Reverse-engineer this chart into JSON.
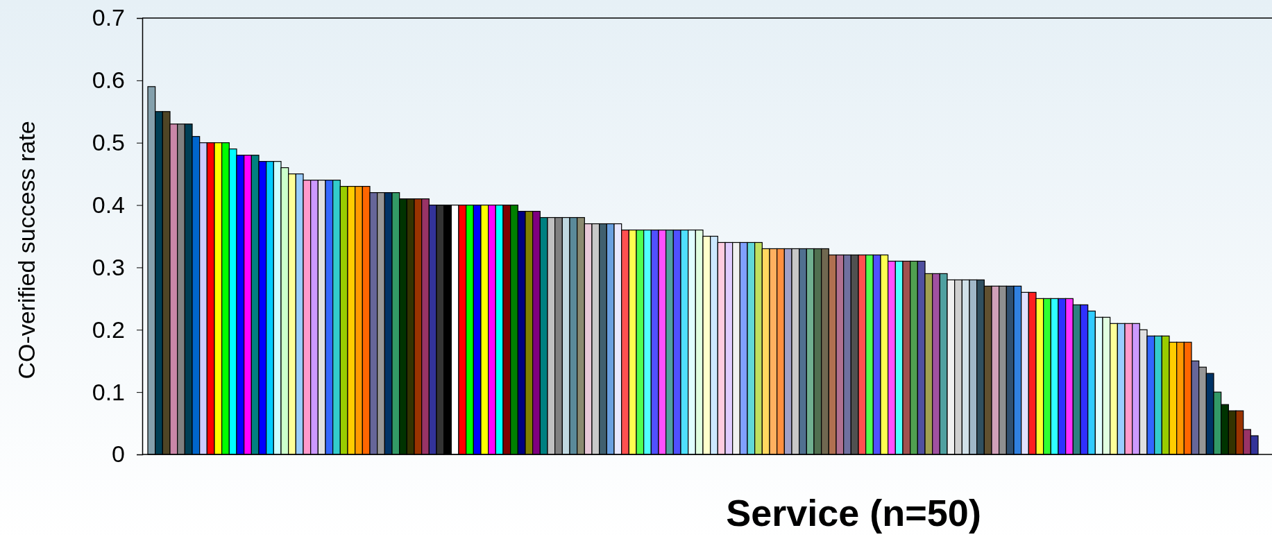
{
  "chart_data": {
    "type": "bar",
    "xlabel": "Service (n=50)",
    "ylabel": "CO-verified success rate",
    "categories": [
      null,
      null,
      null,
      null,
      null,
      null,
      null,
      null,
      null,
      null,
      null,
      null,
      null,
      null,
      null,
      null,
      null,
      null,
      null,
      null,
      null,
      null,
      null,
      null,
      null,
      null,
      null,
      null,
      null,
      null,
      null,
      null,
      null,
      null,
      null,
      null,
      null,
      null,
      null,
      null,
      null,
      null,
      null,
      null,
      null,
      null,
      null,
      null,
      null,
      null,
      null,
      null,
      null,
      null,
      null,
      null,
      null,
      null,
      null,
      null,
      null,
      null,
      null,
      null,
      null,
      null,
      null,
      null,
      null,
      null,
      null,
      null,
      null,
      null,
      null,
      null,
      null,
      null,
      null,
      null,
      null,
      null,
      null,
      null,
      null,
      null,
      null,
      null,
      null,
      null,
      null,
      null,
      null,
      null,
      null,
      null,
      null,
      null,
      null,
      null,
      null,
      null,
      null,
      null,
      null,
      null,
      null,
      null,
      null,
      null,
      null,
      null,
      null,
      null,
      null,
      null,
      null,
      null,
      null,
      null,
      null,
      null,
      null,
      null,
      null,
      null,
      null,
      null,
      null,
      null,
      null,
      null,
      null,
      null,
      null,
      null,
      null,
      null,
      null,
      null,
      null,
      null,
      null,
      null,
      null,
      null,
      null,
      null,
      null,
      null
    ],
    "values": [
      0.59,
      0.55,
      0.55,
      0.53,
      0.53,
      0.53,
      0.51,
      0.5,
      0.5,
      0.5,
      0.5,
      0.49,
      0.48,
      0.48,
      0.48,
      0.47,
      0.47,
      0.47,
      0.46,
      0.45,
      0.45,
      0.44,
      0.44,
      0.44,
      0.44,
      0.44,
      0.43,
      0.43,
      0.43,
      0.43,
      0.42,
      0.42,
      0.42,
      0.42,
      0.41,
      0.41,
      0.41,
      0.41,
      0.4,
      0.4,
      0.4,
      0.4,
      0.4,
      0.4,
      0.4,
      0.4,
      0.4,
      0.4,
      0.4,
      0.4,
      0.39,
      0.39,
      0.39,
      0.38,
      0.38,
      0.38,
      0.38,
      0.38,
      0.38,
      0.37,
      0.37,
      0.37,
      0.37,
      0.37,
      0.36,
      0.36,
      0.36,
      0.36,
      0.36,
      0.36,
      0.36,
      0.36,
      0.36,
      0.36,
      0.36,
      0.35,
      0.35,
      0.34,
      0.34,
      0.34,
      0.34,
      0.34,
      0.34,
      0.33,
      0.33,
      0.33,
      0.33,
      0.33,
      0.33,
      0.33,
      0.33,
      0.33,
      0.32,
      0.32,
      0.32,
      0.32,
      0.32,
      0.32,
      0.32,
      0.32,
      0.31,
      0.31,
      0.31,
      0.31,
      0.31,
      0.29,
      0.29,
      0.29,
      0.28,
      0.28,
      0.28,
      0.28,
      0.28,
      0.27,
      0.27,
      0.27,
      0.27,
      0.27,
      0.26,
      0.26,
      0.25,
      0.25,
      0.25,
      0.25,
      0.25,
      0.24,
      0.24,
      0.23,
      0.22,
      0.22,
      0.21,
      0.21,
      0.21,
      0.21,
      0.2,
      0.19,
      0.19,
      0.19,
      0.18,
      0.18,
      0.18,
      0.15,
      0.14,
      0.13,
      0.1,
      0.08,
      0.07,
      0.07,
      0.04,
      0.03
    ],
    "colors": [
      "#84a0ac",
      "#003f55",
      "#4f4525",
      "#c987a8",
      "#808080",
      "#003f55",
      "#0066cc",
      "#ccccff",
      "#ff0000",
      "#ffff00",
      "#00ff00",
      "#00ffff",
      "#0000ff",
      "#ff00ff",
      "#008080",
      "#0000ff",
      "#00ccff",
      "#ccffff",
      "#ccffcc",
      "#ffff99",
      "#99ccff",
      "#ff99cc",
      "#cc99ff",
      "#e0e0e0",
      "#3366ff",
      "#33cccc",
      "#99cc00",
      "#ffcc00",
      "#ff9900",
      "#ff6600",
      "#666699",
      "#969696",
      "#003366",
      "#339966",
      "#003300",
      "#333300",
      "#993300",
      "#993366",
      "#333399",
      "#333333",
      "#000000",
      "#ffffff",
      "#ff0000",
      "#00ff00",
      "#0000ff",
      "#ffff00",
      "#ff00ff",
      "#00ffff",
      "#800000",
      "#008000",
      "#000080",
      "#808000",
      "#800080",
      "#008080",
      "#c0c0c0",
      "#808080",
      "#c0d8e0",
      "#5a8a9a",
      "#8a8a70",
      "#e8c8d8",
      "#c8c8c8",
      "#406070",
      "#6aa0e0",
      "#e8e8ff",
      "#ff5050",
      "#ffff50",
      "#50ff50",
      "#50ffff",
      "#5050ff",
      "#ff50ff",
      "#50a0a0",
      "#5050ff",
      "#50e0ff",
      "#e0ffff",
      "#e0ffe0",
      "#ffffcc",
      "#cce8ff",
      "#ffcce0",
      "#e0ccff",
      "#f0f0f0",
      "#80a0ff",
      "#60d8d8",
      "#c0e060",
      "#ffd860",
      "#ffb060",
      "#ff9040",
      "#a0a0c8",
      "#c8c8c8",
      "#507090",
      "#70b090",
      "#507050",
      "#706850",
      "#b07050",
      "#b07090",
      "#7070a0",
      "#505050",
      "#ff5050",
      "#50ff50",
      "#5050ff",
      "#ffff50",
      "#ff50ff",
      "#50ffff",
      "#a05050",
      "#50a050",
      "#5050a0",
      "#a0a050",
      "#a050a0",
      "#50a0a0",
      "#f0f0f0",
      "#d0d0d0",
      "#d0e0e8",
      "#a0b8c8",
      "#305060",
      "#605030",
      "#d0a0b8",
      "#909090",
      "#305070",
      "#3080e0",
      "#e0e0ff",
      "#ff2020",
      "#ffff30",
      "#30ff30",
      "#30ffff",
      "#3030ff",
      "#ff30ff",
      "#308080",
      "#3030ff",
      "#30ccff",
      "#e0ffff",
      "#e0ffe0",
      "#ffff99",
      "#99ccff",
      "#ff99cc",
      "#cc99ff",
      "#e0e0e0",
      "#3366ff",
      "#33cccc",
      "#99cc00",
      "#ffcc00",
      "#ff9900",
      "#ff6600",
      "#666699",
      "#969696",
      "#003366",
      "#339966",
      "#003300",
      "#333300",
      "#993300",
      "#993366",
      "#333399"
    ],
    "ylim": [
      0,
      0.7
    ],
    "yticks": [
      0,
      0.1,
      0.2,
      0.3,
      0.4,
      0.5,
      0.6,
      0.7
    ]
  }
}
